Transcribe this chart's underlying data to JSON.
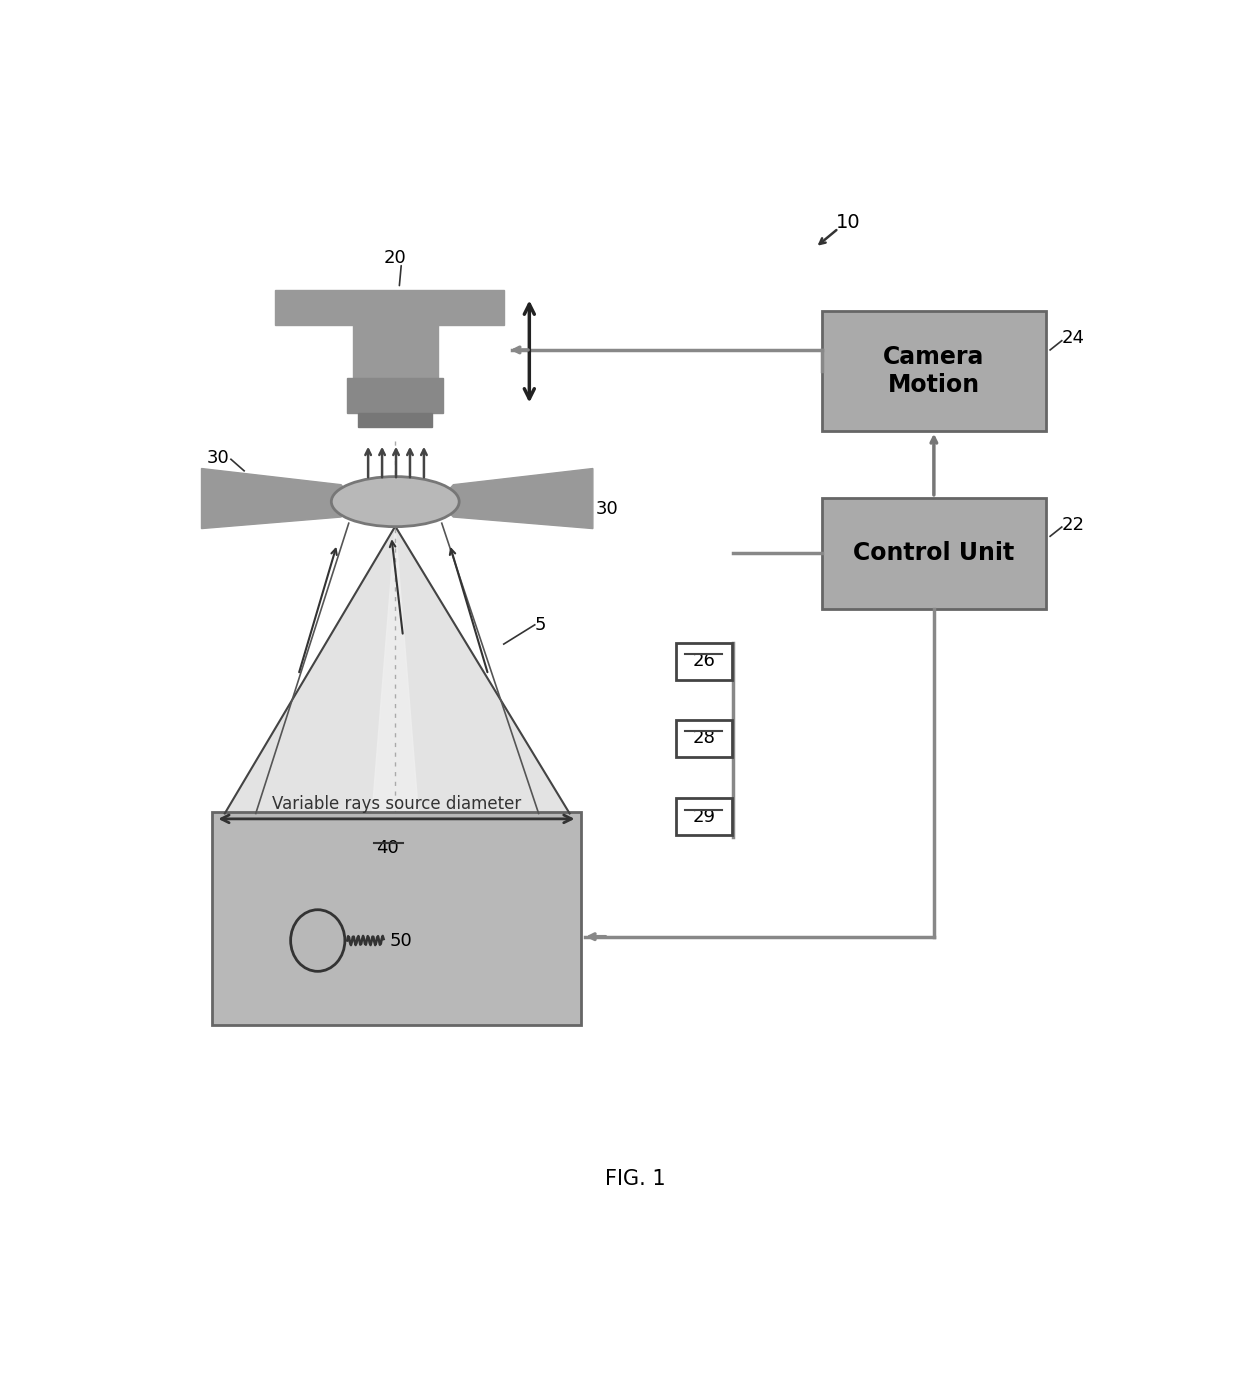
{
  "background_color": "#ffffff",
  "fig_label": "FIG. 1",
  "system_label": "10",
  "camera_label": "20",
  "control_unit_label": "22",
  "camera_motion_label": "24",
  "label_26": "26",
  "label_28": "28",
  "label_29": "29",
  "label_30": "30",
  "label_5": "5",
  "label_40": "40",
  "label_50": "50",
  "variable_text": "Variable rays source diameter",
  "camera_motion_text": "Camera\nMotion",
  "control_unit_text": "Control Unit",
  "box_gray": "#aaaaaa",
  "source_box_gray": "#b8b8b8",
  "light_cone_color": "#e0e0e0",
  "apparatus_color": "#999999",
  "lens_color": "#b0b0b0",
  "line_gray": "#888888",
  "dark_gray": "#555555",
  "arrow_dark": "#333333"
}
